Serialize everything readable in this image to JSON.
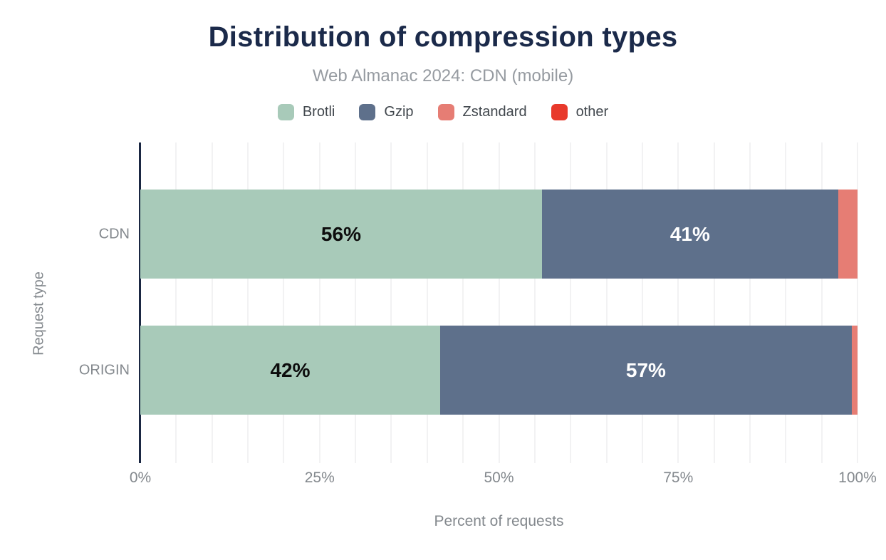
{
  "header": {
    "title": "Distribution of compression types",
    "subtitle": "Web Almanac 2024: CDN (mobile)"
  },
  "colors": {
    "title": "#1b2a4a",
    "subtitle": "#969ba1",
    "axis_line": "#1a2742",
    "axis_text": "#83888d",
    "gridline": "#f2f2f3",
    "background": "#ffffff"
  },
  "legend": {
    "items": [
      {
        "label": "Brotli",
        "color": "#a8cab9"
      },
      {
        "label": "Gzip",
        "color": "#5e708b"
      },
      {
        "label": "Zstandard",
        "color": "#e67d74"
      },
      {
        "label": "other",
        "color": "#e8392b"
      }
    ]
  },
  "chart_data": {
    "type": "bar",
    "orientation": "horizontal",
    "stacked": true,
    "title": "Distribution of compression types",
    "subtitle": "Web Almanac 2024: CDN (mobile)",
    "categories": [
      "CDN",
      "ORIGIN"
    ],
    "series": [
      {
        "name": "Brotli",
        "color": "#a8cab9",
        "values": [
          56,
          42
        ]
      },
      {
        "name": "Gzip",
        "color": "#5e708b",
        "values": [
          41,
          57
        ]
      },
      {
        "name": "Zstandard",
        "color": "#e67d74",
        "values": [
          3,
          1
        ]
      },
      {
        "name": "other",
        "color": "#e8392b",
        "values": [
          0,
          0
        ]
      }
    ],
    "bars": [
      {
        "category": "CDN",
        "segments": [
          {
            "series": "Brotli",
            "width_pct": 56.0,
            "color": "#a8cab9",
            "label": "56%",
            "label_color": "#0d0d0d"
          },
          {
            "series": "Gzip",
            "width_pct": 41.3,
            "color": "#5e708b",
            "label": "41%",
            "label_color": "#ffffff"
          },
          {
            "series": "Zstandard",
            "width_pct": 2.7,
            "color": "#e67d74",
            "label": "",
            "label_color": ""
          },
          {
            "series": "other",
            "width_pct": 0,
            "color": "#e8392b",
            "label": "",
            "label_color": ""
          }
        ]
      },
      {
        "category": "ORIGIN",
        "segments": [
          {
            "series": "Brotli",
            "width_pct": 41.8,
            "color": "#a8cab9",
            "label": "42%",
            "label_color": "#0d0d0d"
          },
          {
            "series": "Gzip",
            "width_pct": 57.4,
            "color": "#5e708b",
            "label": "57%",
            "label_color": "#ffffff"
          },
          {
            "series": "Zstandard",
            "width_pct": 0.8,
            "color": "#e67d74",
            "label": "",
            "label_color": ""
          },
          {
            "series": "other",
            "width_pct": 0,
            "color": "#e8392b",
            "label": "",
            "label_color": ""
          }
        ]
      }
    ],
    "xlabel": "Percent of requests",
    "ylabel": "Request type",
    "x_ticks": [
      {
        "label": "0%",
        "value": 0
      },
      {
        "label": "25%",
        "value": 25
      },
      {
        "label": "50%",
        "value": 50
      },
      {
        "label": "75%",
        "value": 75
      },
      {
        "label": "100%",
        "value": 100
      }
    ],
    "xlim": [
      0,
      100
    ],
    "grid": {
      "vertical_minor_every_pct": 5
    },
    "legend_position": "top"
  }
}
